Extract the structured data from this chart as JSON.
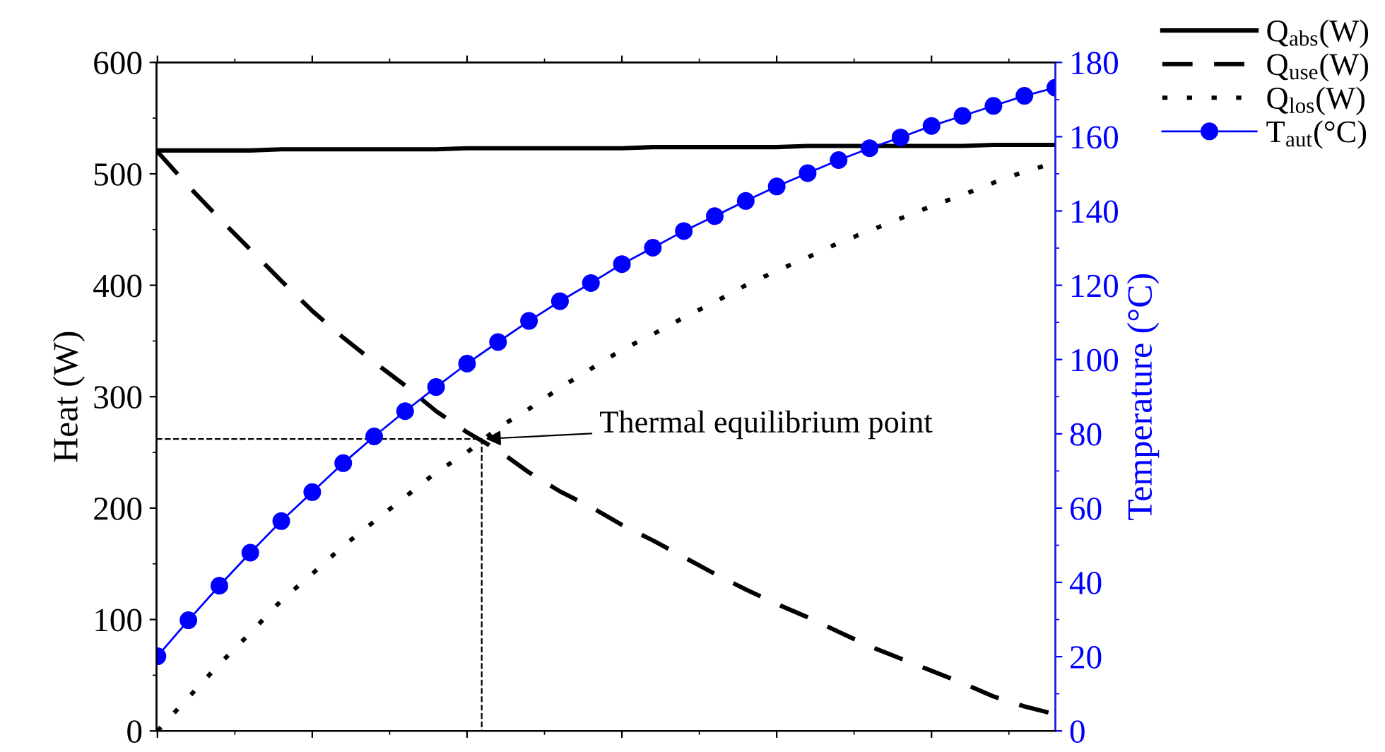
{
  "chart_data": {
    "type": "line",
    "categories": [
      null,
      null,
      null,
      null,
      null,
      null,
      null,
      null,
      null,
      null,
      null,
      null,
      null,
      null,
      null,
      null,
      null,
      null,
      null,
      null,
      null,
      null,
      null,
      null,
      null,
      null,
      null,
      null,
      null,
      null
    ],
    "ylabel": "Heat (W)",
    "y2label": "Temperature (°C)",
    "ylim": [
      0,
      600
    ],
    "yticks": [
      0,
      100,
      200,
      300,
      400,
      500,
      600
    ],
    "y2lim": [
      0,
      180
    ],
    "y2ticks": [
      0,
      20,
      40,
      60,
      80,
      100,
      120,
      140,
      160,
      180
    ],
    "tick_labels": "y",
    "grid": false,
    "legend": "top right",
    "annotations": [
      "Thermal equilibrium point"
    ],
    "ref_lines": [
      {
        "axis": "y",
        "value": 262,
        "color": "#000000",
        "line_style": "dashed"
      }
    ],
    "series": [
      {
        "name": "Q$_{abs}$(W)",
        "color": "#000000",
        "line_style": "solid",
        "marker": "none",
        "values": [
          521,
          521,
          521,
          521,
          522,
          522,
          522,
          522,
          522,
          522,
          523,
          523,
          523,
          523,
          523,
          523,
          524,
          524,
          524,
          524,
          524,
          525,
          525,
          525,
          525,
          525,
          525,
          526,
          526,
          526
        ]
      },
      {
        "name": "Q$_{use}$(W)",
        "color": "#000000",
        "line_style": "dashed",
        "marker": "none",
        "values": [
          520,
          489,
          460,
          432,
          404,
          377,
          353,
          331,
          310,
          287,
          268,
          252,
          232,
          215,
          201,
          185,
          171,
          156,
          141,
          127,
          114,
          102,
          89,
          76,
          65,
          54,
          43,
          31,
          22,
          15
        ]
      },
      {
        "name": "Q$_{los}$(W)",
        "color": "#000000",
        "line_style": "dotted",
        "marker": "none",
        "values": [
          0,
          30,
          60,
          88,
          117,
          141,
          166,
          188,
          210,
          232,
          250,
          272,
          289,
          308,
          325,
          342,
          356,
          371,
          385,
          400,
          413,
          425,
          438,
          449,
          460,
          471,
          481,
          492,
          502,
          510
        ]
      },
      {
        "name": "T$_{aut}$(°C)",
        "color": "#0000ff",
        "line_style": "solid",
        "marker": "circle",
        "axis": "y2",
        "values": [
          20.1,
          29.8,
          39.1,
          48.0,
          56.5,
          64.3,
          72.1,
          79.3,
          86.1,
          92.6,
          98.9,
          104.7,
          110.4,
          115.7,
          120.6,
          125.7,
          130.1,
          134.6,
          138.6,
          142.7,
          146.6,
          150.2,
          153.7,
          156.9,
          159.8,
          162.9,
          165.6,
          168.3,
          171.0,
          173.2
        ]
      }
    ]
  }
}
